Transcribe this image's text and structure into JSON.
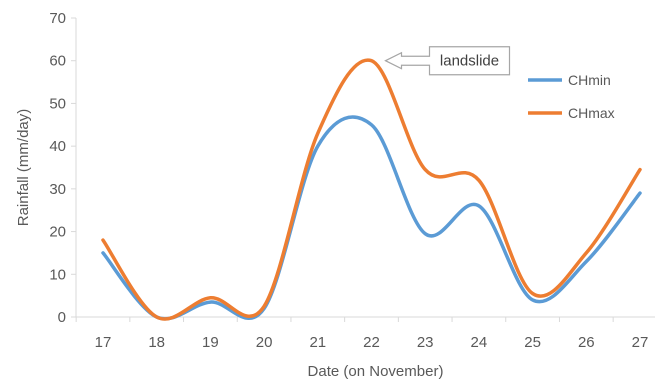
{
  "chart_data": {
    "type": "line",
    "smooth": true,
    "categories": [
      "17",
      "18",
      "19",
      "20",
      "21",
      "22",
      "23",
      "24",
      "25",
      "26",
      "27"
    ],
    "x": [
      17,
      18,
      19,
      20,
      21,
      22,
      23,
      24,
      25,
      26,
      27
    ],
    "series": [
      {
        "name": "CHmin",
        "color": "#5B9BD5",
        "values": [
          15,
          0,
          3.5,
          2,
          40,
          45,
          19.5,
          26,
          4,
          13,
          29
        ]
      },
      {
        "name": "CHmax",
        "color": "#ED7D31",
        "values": [
          18,
          0,
          4.5,
          2.5,
          43,
          60,
          34.5,
          32,
          5.5,
          15,
          34.5
        ]
      }
    ],
    "xlabel": "Date (on November)",
    "ylabel": "Rainfall (mm/day)",
    "ylim": [
      0,
      70
    ],
    "yticks": [
      0,
      10,
      20,
      30,
      40,
      50,
      60,
      70
    ],
    "grid": false,
    "legend": {
      "position": "right",
      "entries": [
        "CHmin",
        "CHmax"
      ]
    },
    "annotations": [
      {
        "text": "landslide",
        "x": 22,
        "y": 60,
        "arrow": "left",
        "color": "#A6A6A6"
      }
    ]
  }
}
